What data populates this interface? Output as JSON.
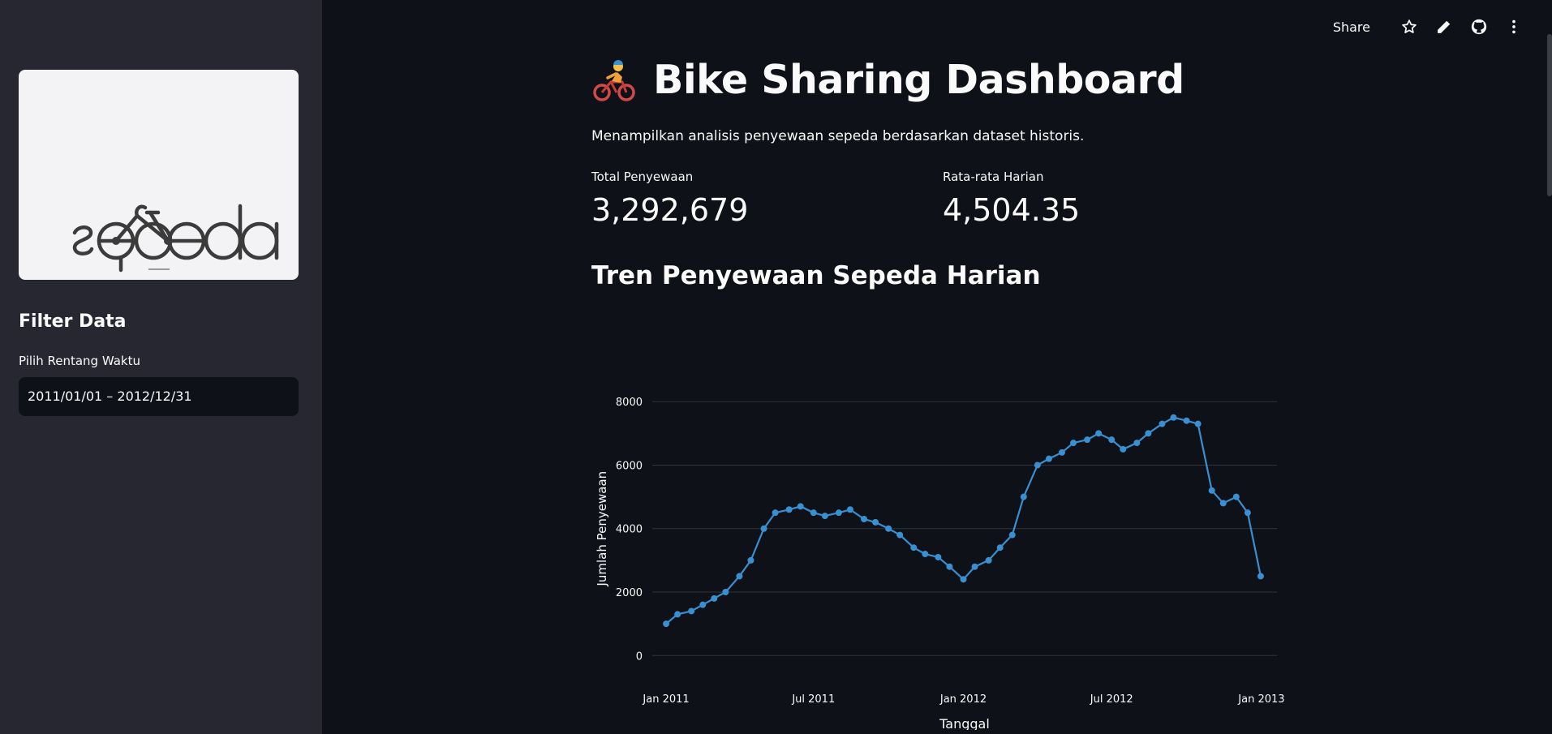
{
  "sidebar": {
    "logo_text": "sepeda",
    "filter_title": "Filter Data",
    "date_label": "Pilih Rentang Waktu",
    "date_value": "2011/01/01 – 2012/12/31"
  },
  "toolbar": {
    "share_label": "Share",
    "icons": [
      "star-icon",
      "pencil-icon",
      "github-icon",
      "kebab-menu-icon"
    ]
  },
  "header": {
    "emoji": "🚴",
    "title": "Bike Sharing Dashboard",
    "caption": "Menampilkan analisis penyewaan sepeda berdasarkan dataset historis."
  },
  "metrics": [
    {
      "label": "Total Penyewaan",
      "value": "3,292,679"
    },
    {
      "label": "Rata-rata Harian",
      "value": "4,504.35"
    }
  ],
  "section_title": "Tren Penyewaan Sepeda Harian",
  "colors": {
    "sidebar_bg": "#262730",
    "main_bg": "#0e1117",
    "series": "#3a8fd0",
    "grid": "#31333f"
  },
  "chart_data": {
    "type": "line",
    "xlabel": "Tanggal",
    "ylabel": "Jumlah Penyewaan",
    "ylim": [
      -300,
      8900
    ],
    "yticks": [
      0,
      2000,
      4000,
      6000,
      8000
    ],
    "xticks": [
      {
        "date": "2011-01-01",
        "label": "Jan 2011"
      },
      {
        "date": "2011-07-01",
        "label": "Jul 2011"
      },
      {
        "date": "2012-01-01",
        "label": "Jan 2012"
      },
      {
        "date": "2012-07-01",
        "label": "Jul 2012"
      },
      {
        "date": "2013-01-01",
        "label": "Jan 2013"
      }
    ],
    "xlim": [
      "2010-12-15",
      "2013-01-20"
    ],
    "grid": true,
    "markers": true,
    "series": [
      {
        "x": [
          "2011-01-01",
          "2011-01-15",
          "2011-02-01",
          "2011-02-15",
          "2011-03-01",
          "2011-03-15",
          "2011-04-01",
          "2011-04-15",
          "2011-05-01",
          "2011-05-15",
          "2011-06-01",
          "2011-06-15",
          "2011-07-01",
          "2011-07-15",
          "2011-08-01",
          "2011-08-15",
          "2011-09-01",
          "2011-09-15",
          "2011-10-01",
          "2011-10-15",
          "2011-11-01",
          "2011-11-15",
          "2011-12-01",
          "2011-12-15",
          "2012-01-01",
          "2012-01-15",
          "2012-02-01",
          "2012-02-15",
          "2012-03-01",
          "2012-03-15",
          "2012-04-01",
          "2012-04-15",
          "2012-05-01",
          "2012-05-15",
          "2012-06-01",
          "2012-06-15",
          "2012-07-01",
          "2012-07-15",
          "2012-08-01",
          "2012-08-15",
          "2012-09-01",
          "2012-09-15",
          "2012-10-01",
          "2012-10-15",
          "2012-11-01",
          "2012-11-15",
          "2012-12-01",
          "2012-12-15",
          "2012-12-31"
        ],
        "y": [
          1000,
          1300,
          1400,
          1600,
          1800,
          2000,
          2500,
          3000,
          4000,
          4500,
          4600,
          4700,
          4500,
          4400,
          4500,
          4600,
          4300,
          4200,
          4000,
          3800,
          3400,
          3200,
          3100,
          2800,
          2400,
          2800,
          3000,
          3400,
          3800,
          5000,
          6000,
          6200,
          6400,
          6700,
          6800,
          7000,
          6800,
          6500,
          6700,
          7000,
          7300,
          7500,
          7400,
          7300,
          5200,
          4800,
          5000,
          4500,
          2500
        ]
      }
    ]
  }
}
